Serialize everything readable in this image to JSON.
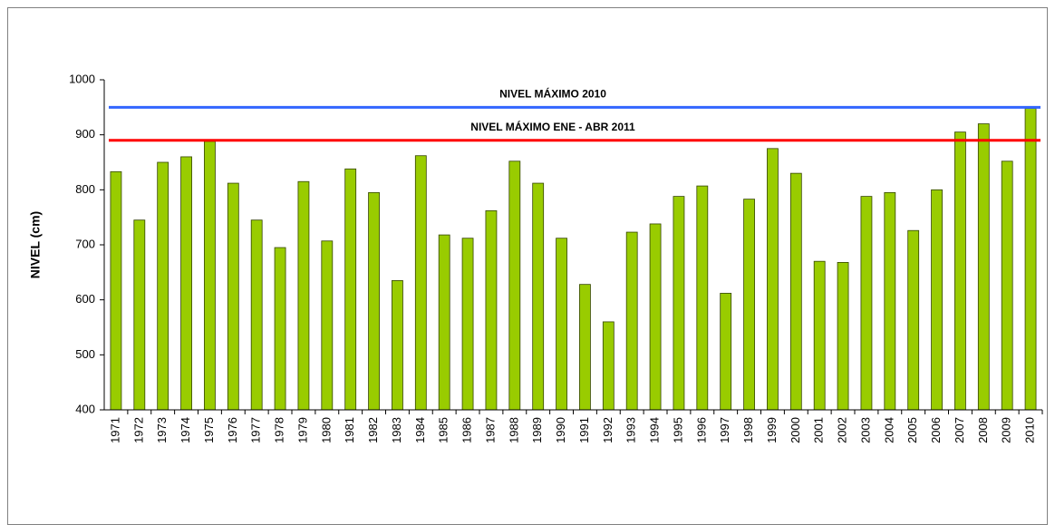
{
  "chart_data": {
    "type": "bar",
    "y_label": "NIVEL (cm)",
    "categories": [
      "1971",
      "1972",
      "1973",
      "1974",
      "1975",
      "1976",
      "1977",
      "1978",
      "1979",
      "1980",
      "1981",
      "1982",
      "1983",
      "1984",
      "1985",
      "1986",
      "1987",
      "1988",
      "1989",
      "1990",
      "1991",
      "1992",
      "1993",
      "1994",
      "1995",
      "1996",
      "1997",
      "1998",
      "1999",
      "2000",
      "2001",
      "2002",
      "2003",
      "2004",
      "2005",
      "2006",
      "2007",
      "2008",
      "2009",
      "2010"
    ],
    "values": [
      833,
      745,
      850,
      860,
      888,
      812,
      745,
      695,
      815,
      707,
      838,
      795,
      635,
      862,
      718,
      712,
      762,
      852,
      812,
      712,
      628,
      560,
      723,
      738,
      788,
      807,
      612,
      783,
      875,
      830,
      670,
      668,
      788,
      795,
      726,
      800,
      905,
      920,
      852,
      948
    ],
    "color": "#99cc00",
    "ylim": [
      400,
      1000
    ],
    "yticks": [
      400,
      500,
      600,
      700,
      800,
      900,
      1000
    ],
    "reference_lines": [
      {
        "label": "NIVEL MÁXIMO 2010",
        "value": 950,
        "color": "#3366ff"
      },
      {
        "label": "NIVEL MÁXIMO ENE - ABR 2011",
        "value": 890,
        "color": "#ff0000"
      }
    ]
  }
}
